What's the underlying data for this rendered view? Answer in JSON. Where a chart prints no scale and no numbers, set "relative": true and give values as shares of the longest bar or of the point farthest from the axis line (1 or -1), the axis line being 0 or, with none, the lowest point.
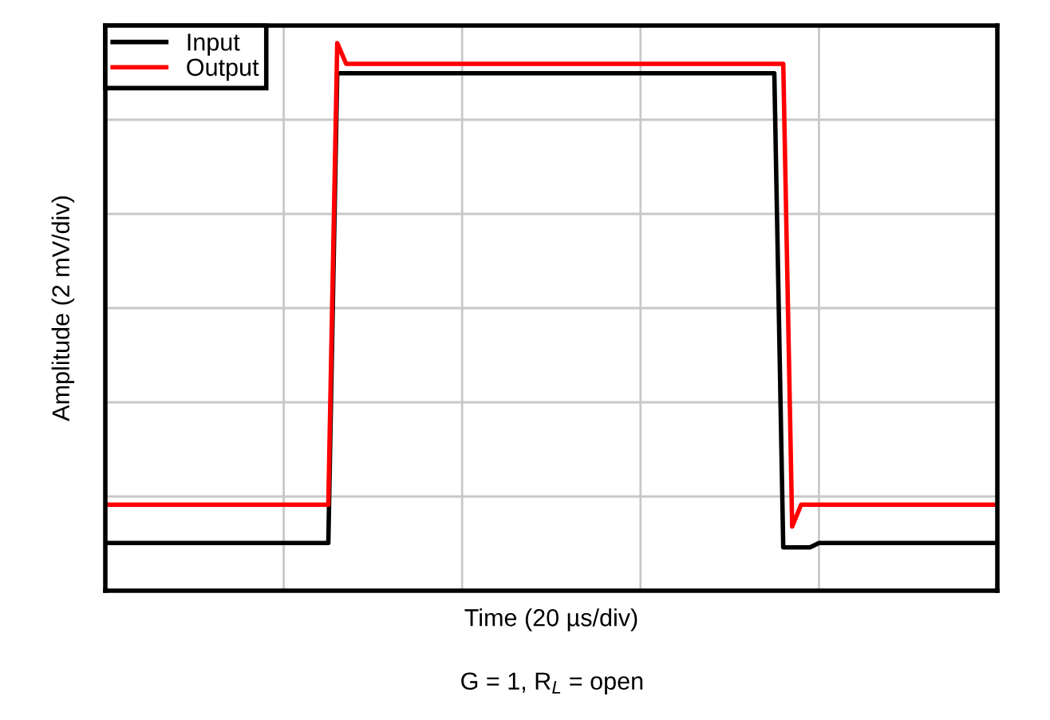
{
  "chart_data": {
    "type": "line",
    "relative": true,
    "xlabel": "Time (20 µs/div)",
    "ylabel": "Amplitude (2 mV/div)",
    "annotations": [
      "G = 1, R$_{L}$ = open"
    ],
    "categories": [
      null,
      null,
      null,
      null,
      null,
      null,
      null,
      null,
      null,
      null,
      null,
      null,
      null,
      null,
      null,
      null,
      null,
      null,
      null,
      null,
      null,
      null,
      null,
      null,
      null,
      null,
      null,
      null,
      null,
      null,
      null,
      null,
      null,
      null,
      null,
      null,
      null,
      null,
      null,
      null,
      null,
      null,
      null,
      null,
      null,
      null,
      null,
      null,
      null,
      null,
      null,
      null,
      null,
      null,
      null,
      null,
      null,
      null,
      null,
      null,
      null,
      null,
      null,
      null,
      null,
      null,
      null,
      null,
      null,
      null,
      null,
      null,
      null,
      null,
      null,
      null,
      null,
      null,
      null,
      null,
      null,
      null,
      null,
      null,
      null,
      null,
      null,
      null,
      null,
      null,
      null,
      null,
      null,
      null,
      null,
      null,
      null,
      null,
      null,
      null,
      null
    ],
    "series": [
      {
        "name": "Input",
        "color": "#000000",
        "values": [
          0.087,
          0.087,
          0.087,
          0.087,
          0.087,
          0.087,
          0.087,
          0.087,
          0.087,
          0.087,
          0.087,
          0.087,
          0.087,
          0.087,
          0.087,
          0.087,
          0.087,
          0.087,
          0.087,
          0.087,
          0.087,
          0.087,
          0.087,
          0.087,
          0.087,
          0.087,
          0.945,
          0.945,
          0.945,
          0.945,
          0.945,
          0.945,
          0.945,
          0.945,
          0.945,
          0.945,
          0.945,
          0.945,
          0.945,
          0.945,
          0.945,
          0.945,
          0.945,
          0.945,
          0.945,
          0.945,
          0.945,
          0.945,
          0.945,
          0.945,
          0.945,
          0.945,
          0.945,
          0.945,
          0.945,
          0.945,
          0.945,
          0.945,
          0.945,
          0.945,
          0.945,
          0.945,
          0.945,
          0.945,
          0.945,
          0.945,
          0.945,
          0.945,
          0.945,
          0.945,
          0.945,
          0.945,
          0.945,
          0.945,
          0.945,
          0.945,
          0.079,
          0.079,
          0.079,
          0.079,
          0.087,
          0.087,
          0.087,
          0.087,
          0.087,
          0.087,
          0.087,
          0.087,
          0.087,
          0.087,
          0.087,
          0.087,
          0.087,
          0.087,
          0.087,
          0.087,
          0.087,
          0.087,
          0.087,
          0.087,
          0.087
        ]
      },
      {
        "name": "Output",
        "color": "#ff0000",
        "values": [
          0.157,
          0.157,
          0.157,
          0.157,
          0.157,
          0.157,
          0.157,
          0.157,
          0.157,
          0.157,
          0.157,
          0.157,
          0.157,
          0.157,
          0.157,
          0.157,
          0.157,
          0.157,
          0.157,
          0.157,
          0.157,
          0.157,
          0.157,
          0.157,
          0.157,
          0.157,
          1.0,
          0.962,
          0.962,
          0.962,
          0.962,
          0.962,
          0.962,
          0.962,
          0.962,
          0.962,
          0.962,
          0.962,
          0.962,
          0.962,
          0.962,
          0.962,
          0.962,
          0.962,
          0.962,
          0.962,
          0.962,
          0.962,
          0.962,
          0.962,
          0.962,
          0.962,
          0.962,
          0.962,
          0.962,
          0.962,
          0.962,
          0.962,
          0.962,
          0.962,
          0.962,
          0.962,
          0.962,
          0.962,
          0.962,
          0.962,
          0.962,
          0.962,
          0.962,
          0.962,
          0.962,
          0.962,
          0.962,
          0.962,
          0.962,
          0.962,
          0.962,
          0.117,
          0.157,
          0.157,
          0.157,
          0.157,
          0.157,
          0.157,
          0.157,
          0.157,
          0.157,
          0.157,
          0.157,
          0.157,
          0.157,
          0.157,
          0.157,
          0.157,
          0.157,
          0.157,
          0.157,
          0.157,
          0.157,
          0.157,
          0.157
        ]
      }
    ],
    "grid": true,
    "legend": "top left",
    "tick_labels": false,
    "marker": "none",
    "line_style": "solid"
  }
}
